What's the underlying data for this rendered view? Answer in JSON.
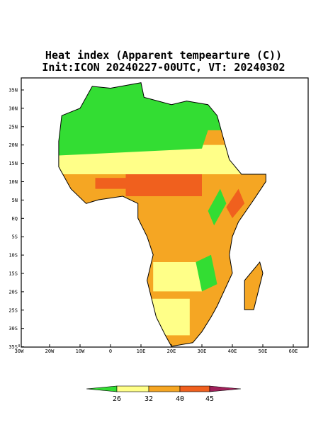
{
  "header": {
    "title_lines": [
      "Heat index (Apparent tempearture (C))",
      "Init:ICON 20240227-00UTC, VT: 20240302"
    ]
  },
  "map": {
    "lat_labels": [
      "35N",
      "30N",
      "25N",
      "20N",
      "15N",
      "10N",
      "5N",
      "EQ",
      "5S",
      "10S",
      "15S",
      "20S",
      "25S",
      "30S",
      "35S"
    ],
    "lon_labels": [
      "30W",
      "20W",
      "10W",
      "0",
      "10E",
      "20E",
      "30E",
      "40E",
      "50E",
      "60E"
    ]
  },
  "colorbar": {
    "labels": [
      "26",
      "32",
      "40",
      "45"
    ]
  }
}
